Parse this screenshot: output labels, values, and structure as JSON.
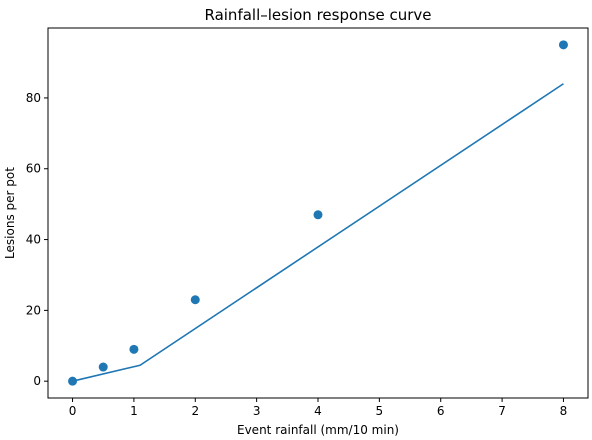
{
  "chart_data": {
    "type": "scatter",
    "title": "Rainfall–lesion response curve",
    "xlabel": "Event rainfall (mm/10 min)",
    "ylabel": "Lesions per pot",
    "xlim": [
      -0.4,
      8.4
    ],
    "ylim": [
      -4.75,
      99.75
    ],
    "xticks": [
      0,
      1,
      2,
      3,
      4,
      5,
      6,
      7,
      8
    ],
    "yticks": [
      0,
      20,
      40,
      60,
      80
    ],
    "grid": false,
    "legend": "none",
    "series": [
      {
        "kind": "scatter",
        "x": [
          0,
          0.5,
          1,
          2,
          4,
          8
        ],
        "y": [
          0,
          4,
          9,
          23,
          47,
          95
        ],
        "color": "#1f77b4"
      },
      {
        "kind": "line",
        "x": [
          0,
          1.1,
          8
        ],
        "y": [
          0,
          4.5,
          84
        ],
        "color": "#1f77b4"
      }
    ]
  }
}
